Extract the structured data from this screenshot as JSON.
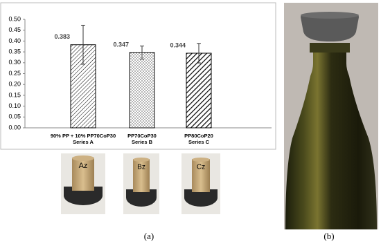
{
  "chart_data": {
    "type": "bar",
    "categories": [
      [
        "90% PP + 10% PP70CoP30",
        "Series A"
      ],
      [
        "PP70CoP30",
        "Series B"
      ],
      [
        "PP80CoP20",
        "Series C"
      ]
    ],
    "values": [
      0.383,
      0.347,
      0.344
    ],
    "errors": [
      0.09,
      0.03,
      0.045
    ],
    "color": "#000000",
    "ylim": [
      0,
      0.5
    ],
    "yticks": [
      {
        "value": 0,
        "label": "0.00"
      },
      {
        "value": 0.05,
        "label": "0.05"
      },
      {
        "value": 0.1,
        "label": "0.10"
      },
      {
        "value": 0.15,
        "label": "0.15"
      },
      {
        "value": 0.2,
        "label": "0.20"
      },
      {
        "value": 0.25,
        "label": "0.25"
      },
      {
        "value": 0.3,
        "label": "0.30"
      },
      {
        "value": 0.35,
        "label": "0.35"
      },
      {
        "value": 0.4,
        "label": "0.40"
      },
      {
        "value": 0.45,
        "label": "0.45"
      },
      {
        "value": 0.5,
        "label": "0.50"
      }
    ],
    "grid": false
  },
  "photo_labels": [
    "Az",
    "Bz",
    "Cz"
  ],
  "panels": [
    "(a)",
    "(b)"
  ]
}
